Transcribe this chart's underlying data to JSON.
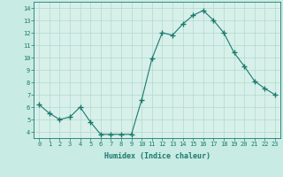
{
  "x": [
    0,
    1,
    2,
    3,
    4,
    5,
    6,
    7,
    8,
    9,
    10,
    11,
    12,
    13,
    14,
    15,
    16,
    17,
    18,
    19,
    20,
    21,
    22,
    23
  ],
  "y": [
    6.2,
    5.5,
    5.0,
    5.2,
    6.0,
    4.8,
    3.8,
    3.8,
    3.8,
    3.8,
    6.6,
    9.9,
    12.0,
    11.8,
    12.7,
    13.4,
    13.8,
    13.0,
    12.0,
    10.4,
    9.3,
    8.1,
    7.5,
    7.0
  ],
  "line_color": "#1a7a6e",
  "marker": "+",
  "marker_size": 4,
  "marker_linewidth": 1.0,
  "xlabel": "Humidex (Indice chaleur)",
  "xlim": [
    -0.5,
    23.5
  ],
  "ylim": [
    3.5,
    14.5
  ],
  "yticks": [
    4,
    5,
    6,
    7,
    8,
    9,
    10,
    11,
    12,
    13,
    14
  ],
  "xticks": [
    0,
    1,
    2,
    3,
    4,
    5,
    6,
    7,
    8,
    9,
    10,
    11,
    12,
    13,
    14,
    15,
    16,
    17,
    18,
    19,
    20,
    21,
    22,
    23
  ],
  "xtick_labels": [
    "0",
    "1",
    "2",
    "3",
    "4",
    "5",
    "6",
    "7",
    "8",
    "9",
    "10",
    "11",
    "12",
    "13",
    "14",
    "15",
    "16",
    "17",
    "18",
    "19",
    "20",
    "21",
    "22",
    "23"
  ],
  "background_color": "#c8ebe3",
  "grid_color": "#b0d8ce",
  "plot_bg_color": "#d8f0ea",
  "tick_color": "#1a7a6e",
  "label_color": "#1a7a6e",
  "spine_color": "#1a7a6e",
  "tick_fontsize": 5.0,
  "xlabel_fontsize": 6.0
}
